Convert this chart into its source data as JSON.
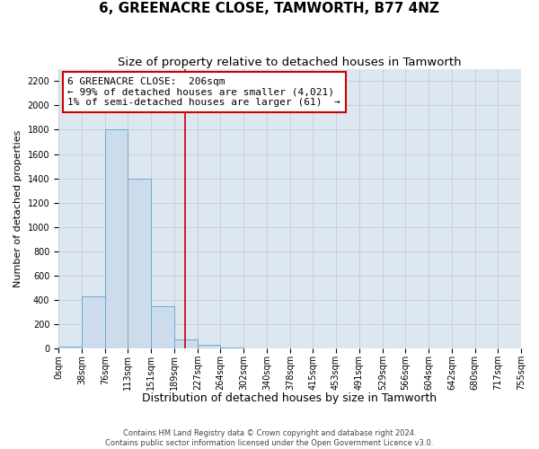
{
  "title": "6, GREENACRE CLOSE, TAMWORTH, B77 4NZ",
  "subtitle": "Size of property relative to detached houses in Tamworth",
  "xlabel": "Distribution of detached houses by size in Tamworth",
  "ylabel": "Number of detached properties",
  "bin_edges": [
    0,
    38,
    76,
    113,
    151,
    189,
    227,
    264,
    302,
    340,
    378,
    415,
    453,
    491,
    529,
    566,
    604,
    642,
    680,
    717,
    755
  ],
  "bin_labels": [
    "0sqm",
    "38sqm",
    "76sqm",
    "113sqm",
    "151sqm",
    "189sqm",
    "227sqm",
    "264sqm",
    "302sqm",
    "340sqm",
    "378sqm",
    "415sqm",
    "453sqm",
    "491sqm",
    "529sqm",
    "566sqm",
    "604sqm",
    "642sqm",
    "680sqm",
    "717sqm",
    "755sqm"
  ],
  "counts": [
    20,
    430,
    1800,
    1400,
    350,
    80,
    30,
    10,
    0,
    0,
    0,
    0,
    0,
    0,
    0,
    0,
    0,
    0,
    0,
    0
  ],
  "bar_color": "#cddceb",
  "bar_edge_color": "#6aaad4",
  "vline_x": 206,
  "vline_color": "#cc0000",
  "annotation_line1": "6 GREENACRE CLOSE:  206sqm",
  "annotation_line2": "← 99% of detached houses are smaller (4,021)",
  "annotation_line3": "1% of semi-detached houses are larger (61)  →",
  "ylim": [
    0,
    2300
  ],
  "yticks": [
    0,
    200,
    400,
    600,
    800,
    1000,
    1200,
    1400,
    1600,
    1800,
    2000,
    2200
  ],
  "grid_color": "#c8d0da",
  "background_color": "#dde7f0",
  "footer_line1": "Contains HM Land Registry data © Crown copyright and database right 2024.",
  "footer_line2": "Contains public sector information licensed under the Open Government Licence v3.0.",
  "title_fontsize": 11,
  "subtitle_fontsize": 9.5,
  "xlabel_fontsize": 9,
  "ylabel_fontsize": 8,
  "tick_fontsize": 7,
  "annotation_fontsize": 8,
  "footer_fontsize": 6
}
